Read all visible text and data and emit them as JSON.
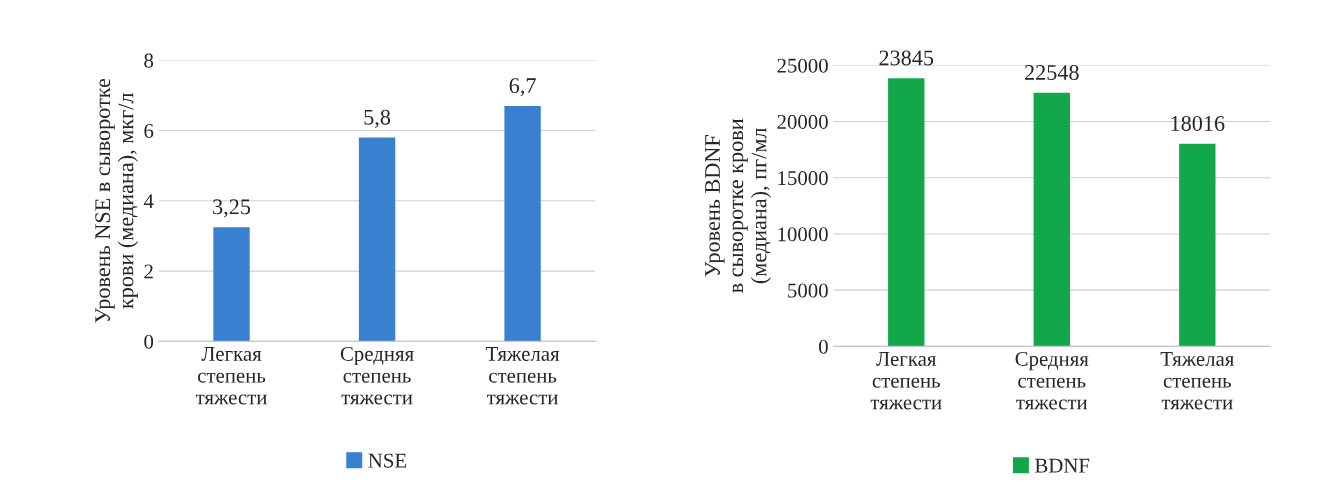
{
  "chart_data": [
    {
      "type": "bar",
      "categories": [
        "Легкая\nстепень\nтяжести",
        "Средняя\nстепень\nтяжести",
        "Тяжелая\nстепень\nтяжести"
      ],
      "ylabel": "Уровень NSE в сыворотке\nкрови (медиана), мкг/л",
      "series": [
        {
          "name": "NSE",
          "color": "#3a80d0",
          "values": [
            3.25,
            5.8,
            6.7
          ],
          "value_labels": [
            "3,25",
            "5,8",
            "6,7"
          ]
        }
      ],
      "ylim": [
        0,
        8
      ],
      "yticks": [
        0,
        2,
        4,
        6,
        8
      ],
      "grid": "y",
      "legend": "bottom"
    },
    {
      "type": "bar",
      "categories": [
        "Легкая\nстепень\nтяжести",
        "Средняя\nстепень\nтяжести",
        "Тяжелая\nстепень\nтяжести"
      ],
      "ylabel": "Уровень BDNF\nв сыворотке крови\n(медиана), пг/мл",
      "series": [
        {
          "name": "BDNF",
          "color": "#12a84a",
          "values": [
            23845,
            22548,
            18016
          ]
        }
      ],
      "ylim": [
        0,
        25000
      ],
      "yticks": [
        0,
        5000,
        10000,
        15000,
        20000,
        25000
      ],
      "grid": "y",
      "legend": "bottom",
      "data_labels": true
    }
  ]
}
